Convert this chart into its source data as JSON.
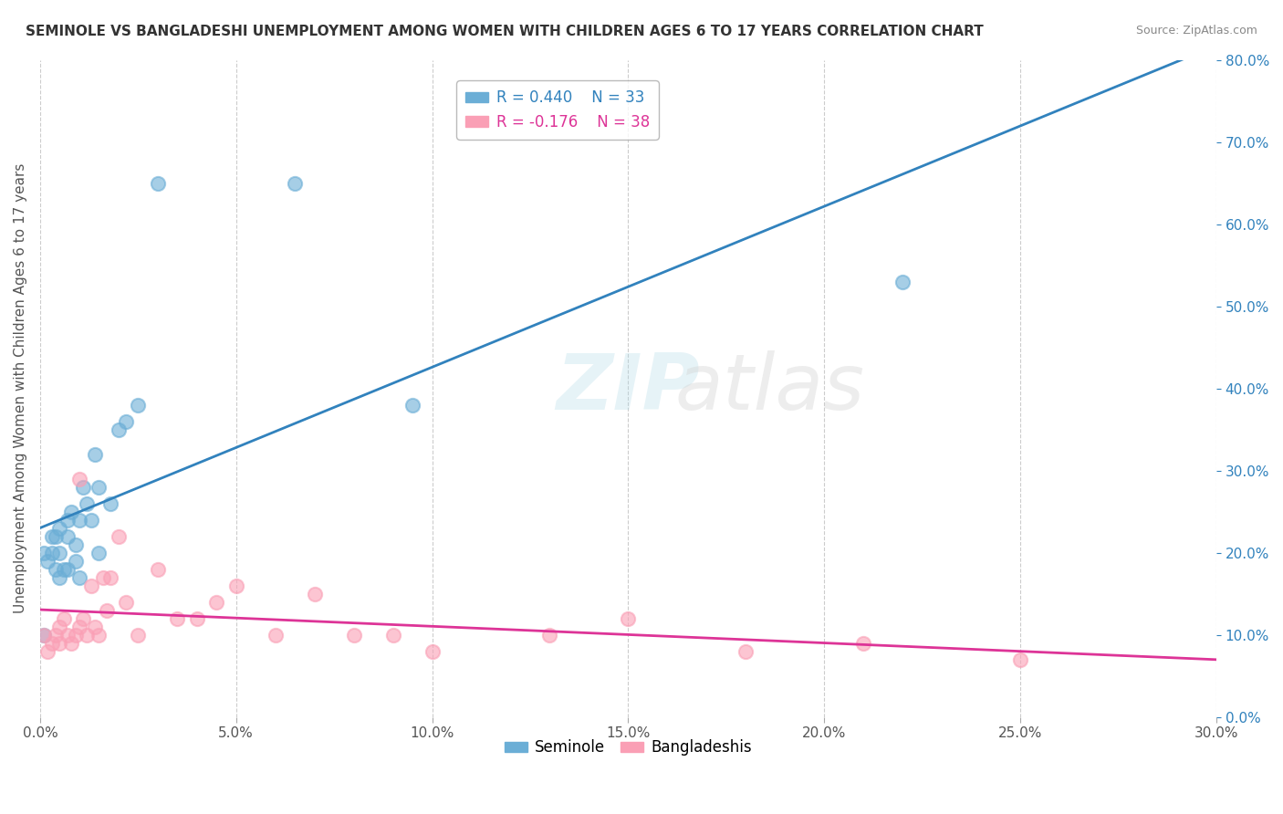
{
  "title": "SEMINOLE VS BANGLADESHI UNEMPLOYMENT AMONG WOMEN WITH CHILDREN AGES 6 TO 17 YEARS CORRELATION CHART",
  "source": "Source: ZipAtlas.com",
  "ylabel": "Unemployment Among Women with Children Ages 6 to 17 years",
  "xlabel_ticks": [
    "0.0%",
    "5.0%",
    "10.0%",
    "15.0%",
    "20.0%",
    "25.0%",
    "30.0%"
  ],
  "xlabel_vals": [
    0.0,
    0.05,
    0.1,
    0.15,
    0.2,
    0.25,
    0.3
  ],
  "ylabel_ticks_right": [
    "0.0%",
    "10.0%",
    "20.0%",
    "30.0%",
    "40.0%",
    "50.0%",
    "60.0%",
    "70.0%",
    "80.0%"
  ],
  "ylabel_vals_right": [
    0.0,
    0.1,
    0.2,
    0.3,
    0.4,
    0.5,
    0.6,
    0.7,
    0.8
  ],
  "xlim": [
    0.0,
    0.3
  ],
  "ylim": [
    0.0,
    0.8
  ],
  "legend_r1": "R = 0.440",
  "legend_n1": "N = 33",
  "legend_r2": "R = -0.176",
  "legend_n2": "N = 38",
  "blue_color": "#6baed6",
  "pink_color": "#fa9fb5",
  "blue_line_color": "#3182bd",
  "pink_line_color": "#dd3497",
  "watermark_zip": "ZIP",
  "watermark_atlas": "atlas",
  "seminole_x": [
    0.001,
    0.001,
    0.002,
    0.003,
    0.003,
    0.004,
    0.004,
    0.005,
    0.005,
    0.005,
    0.006,
    0.007,
    0.007,
    0.007,
    0.008,
    0.009,
    0.009,
    0.01,
    0.01,
    0.011,
    0.012,
    0.013,
    0.014,
    0.015,
    0.015,
    0.018,
    0.02,
    0.022,
    0.025,
    0.03,
    0.065,
    0.095,
    0.22
  ],
  "seminole_y": [
    0.2,
    0.1,
    0.19,
    0.2,
    0.22,
    0.18,
    0.22,
    0.2,
    0.17,
    0.23,
    0.18,
    0.24,
    0.22,
    0.18,
    0.25,
    0.19,
    0.21,
    0.24,
    0.17,
    0.28,
    0.26,
    0.24,
    0.32,
    0.2,
    0.28,
    0.26,
    0.35,
    0.36,
    0.38,
    0.65,
    0.65,
    0.38,
    0.53
  ],
  "bangladeshi_x": [
    0.001,
    0.002,
    0.003,
    0.004,
    0.005,
    0.005,
    0.006,
    0.007,
    0.008,
    0.009,
    0.01,
    0.01,
    0.011,
    0.012,
    0.013,
    0.014,
    0.015,
    0.016,
    0.017,
    0.018,
    0.02,
    0.022,
    0.025,
    0.03,
    0.035,
    0.04,
    0.045,
    0.05,
    0.06,
    0.07,
    0.08,
    0.09,
    0.1,
    0.13,
    0.15,
    0.18,
    0.21,
    0.25
  ],
  "bangladeshi_y": [
    0.1,
    0.08,
    0.09,
    0.1,
    0.11,
    0.09,
    0.12,
    0.1,
    0.09,
    0.1,
    0.11,
    0.29,
    0.12,
    0.1,
    0.16,
    0.11,
    0.1,
    0.17,
    0.13,
    0.17,
    0.22,
    0.14,
    0.1,
    0.18,
    0.12,
    0.12,
    0.14,
    0.16,
    0.1,
    0.15,
    0.1,
    0.1,
    0.08,
    0.1,
    0.12,
    0.08,
    0.09,
    0.07
  ]
}
